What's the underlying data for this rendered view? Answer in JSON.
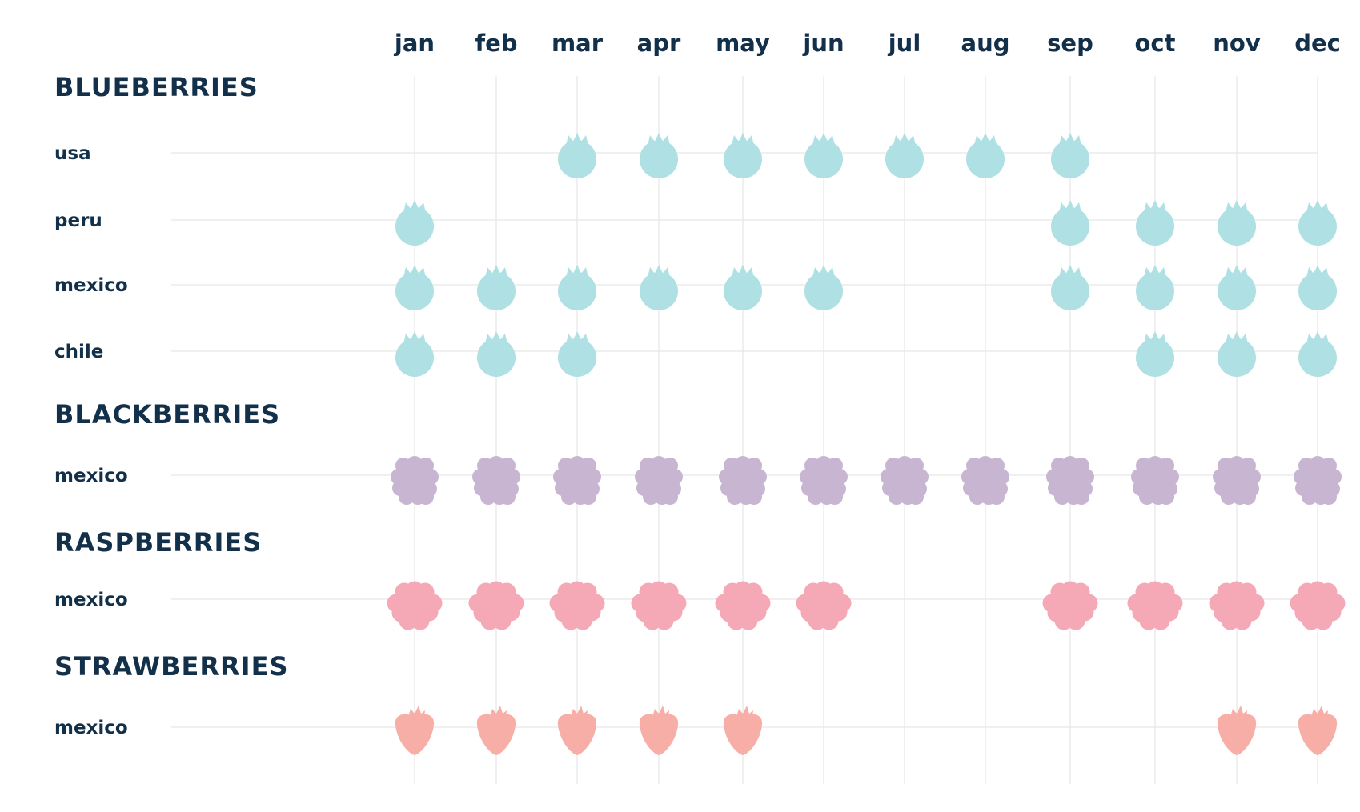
{
  "chart_data": {
    "type": "seasonality-grid",
    "months": [
      "jan",
      "feb",
      "mar",
      "apr",
      "may",
      "jun",
      "jul",
      "aug",
      "sep",
      "oct",
      "nov",
      "dec"
    ],
    "fruits": [
      {
        "title": "BLUEBERRIES",
        "shape": "blueberry",
        "color": "#aee0e4",
        "origins": [
          {
            "label": "usa",
            "available": [
              0,
              0,
              1,
              1,
              1,
              1,
              1,
              1,
              1,
              0,
              0,
              0
            ]
          },
          {
            "label": "peru",
            "available": [
              1,
              0,
              0,
              0,
              0,
              0,
              0,
              0,
              1,
              1,
              1,
              1
            ]
          },
          {
            "label": "mexico",
            "available": [
              1,
              1,
              1,
              1,
              1,
              1,
              0,
              0,
              1,
              1,
              1,
              1
            ]
          },
          {
            "label": "chile",
            "available": [
              1,
              1,
              1,
              0,
              0,
              0,
              0,
              0,
              0,
              1,
              1,
              1
            ]
          }
        ]
      },
      {
        "title": "BLACKBERRIES",
        "shape": "blackberry",
        "color": "#c8b5d1",
        "origins": [
          {
            "label": "mexico",
            "available": [
              1,
              1,
              1,
              1,
              1,
              1,
              1,
              1,
              1,
              1,
              1,
              1
            ]
          }
        ]
      },
      {
        "title": "RASPBERRIES",
        "shape": "raspberry",
        "color": "#f5a8b6",
        "origins": [
          {
            "label": "mexico",
            "available": [
              1,
              1,
              1,
              1,
              1,
              1,
              0,
              0,
              1,
              1,
              1,
              1
            ]
          }
        ]
      },
      {
        "title": "STRAWBERRIES",
        "shape": "strawberry",
        "color": "#f7aea6",
        "origins": [
          {
            "label": "mexico",
            "available": [
              1,
              1,
              1,
              1,
              1,
              0,
              0,
              0,
              0,
              0,
              1,
              1
            ]
          }
        ]
      }
    ],
    "text_color": "#13304a",
    "grid_color": "#e6e6e6"
  }
}
